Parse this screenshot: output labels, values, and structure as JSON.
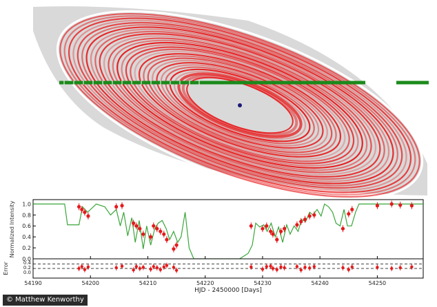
{
  "credit": "© Matthew Kenworthy",
  "colors": {
    "disk": "#d9d9d9",
    "ring_red": "#e8191b",
    "transit_line": "#1b8a1b",
    "star": "#1a1a7a",
    "model_line": "#3aa53a",
    "data_points": "#e41a1c"
  },
  "chart_data": [
    {
      "type": "diagram",
      "panel": "ring-model",
      "elements": [
        "grey disk",
        "red ring system",
        "green transit path",
        "central star"
      ],
      "ring_count": 30
    },
    {
      "type": "line",
      "panel": "light-curve",
      "xlabel": "",
      "ylabel": "Normalized Intensity",
      "xlim": [
        54190,
        54258
      ],
      "ylim": [
        0.0,
        1.08
      ],
      "yticks": [
        "0.0",
        "0.2",
        "0.4",
        "0.6",
        "0.8",
        "1.0"
      ],
      "grid": false,
      "series": [
        {
          "style": "line",
          "x": [
            54190,
            54195.5,
            54196,
            54198,
            54198.6,
            54199.5,
            54201,
            54202.5,
            54203.5,
            54204.5,
            54205.2,
            54205.8,
            54206.5,
            54207.2,
            54207.8,
            54208.5,
            54209.2,
            54209.8,
            54210.5,
            54211.2,
            54211.8,
            54212.5,
            54213.2,
            54213.8,
            54214.5,
            54215.2,
            54215.8,
            54216.5,
            54217.2,
            54218,
            54221,
            54224,
            54226,
            54227.5,
            54228.2,
            54228.8,
            54229.5,
            54230.2,
            54230.8,
            54231.5,
            54232.2,
            54232.8,
            54233.5,
            54234.2,
            54234.8,
            54235.5,
            54236.2,
            54236.8,
            54237.5,
            54238.2,
            54238.8,
            54239.5,
            54240.2,
            54240.8,
            54241.5,
            54242.2,
            54242.8,
            54243.5,
            54244.2,
            54244.8,
            54245.5,
            54246.2,
            54246.8,
            54247.5,
            54258
          ],
          "y": [
            1.0,
            1.0,
            0.62,
            0.62,
            0.95,
            0.85,
            1.0,
            0.95,
            0.8,
            0.9,
            0.6,
            0.85,
            0.42,
            0.75,
            0.3,
            0.7,
            0.18,
            0.6,
            0.25,
            0.55,
            0.65,
            0.7,
            0.55,
            0.35,
            0.5,
            0.3,
            0.4,
            0.85,
            0.2,
            0.0,
            0.0,
            0.0,
            0.0,
            0.1,
            0.25,
            0.65,
            0.58,
            0.62,
            0.5,
            0.65,
            0.4,
            0.58,
            0.3,
            0.62,
            0.45,
            0.6,
            0.5,
            0.72,
            0.68,
            0.85,
            0.8,
            0.9,
            0.78,
            1.0,
            0.95,
            0.85,
            0.65,
            0.6,
            0.9,
            0.6,
            0.6,
            0.85,
            1.0,
            1.0,
            1.0
          ]
        },
        {
          "style": "points",
          "x": [
            54198,
            54198.5,
            54199,
            54199.6,
            54204.5,
            54205.5,
            54207.5,
            54208,
            54208.6,
            54209.2,
            54210.5,
            54211,
            54211.6,
            54212.2,
            54212.8,
            54213.3,
            54214.5,
            54215,
            54228,
            54230,
            54230.7,
            54231.4,
            54231.8,
            54232.5,
            54233.2,
            54233.8,
            54236,
            54236.7,
            54237.4,
            54238.2,
            54239,
            54244,
            54245,
            54245.6,
            54250,
            54252.5,
            54254,
            54256
          ],
          "y": [
            0.95,
            0.9,
            0.85,
            0.78,
            0.95,
            0.97,
            0.65,
            0.6,
            0.55,
            0.45,
            0.4,
            0.6,
            0.55,
            0.5,
            0.45,
            0.35,
            0.18,
            0.25,
            0.6,
            0.55,
            0.6,
            0.5,
            0.45,
            0.35,
            0.5,
            0.55,
            0.62,
            0.68,
            0.72,
            0.78,
            0.8,
            0.55,
            0.82,
            0.9,
            0.97,
            1.0,
            0.98,
            0.97
          ]
        }
      ]
    },
    {
      "type": "scatter",
      "panel": "residuals",
      "xlabel": "HJD - 2450000 [Days]",
      "ylabel": "Error",
      "xlim": [
        54190,
        54258
      ],
      "xticks": [
        "54190",
        "54200",
        "54210",
        "54220",
        "54230",
        "54240",
        "54250"
      ],
      "yticks": [
        "0.4",
        "0.2",
        "0.0"
      ],
      "dashed_lines": [
        0.12,
        0.0
      ],
      "x": [
        54198,
        54198.5,
        54199,
        54199.6,
        54204.5,
        54205.5,
        54207.5,
        54208,
        54208.6,
        54209.2,
        54210.5,
        54211,
        54211.6,
        54212.2,
        54212.8,
        54213.3,
        54214.5,
        54215,
        54228,
        54230,
        54230.7,
        54231.4,
        54231.8,
        54232.5,
        54233.2,
        54233.8,
        54236,
        54236.7,
        54237.4,
        54238.2,
        54239,
        54244,
        54245,
        54245.6,
        54250,
        54252.5,
        54254,
        54256
      ],
      "y": [
        0.0,
        0.05,
        -0.03,
        0.04,
        0.02,
        0.06,
        -0.04,
        0.05,
        0.0,
        0.03,
        -0.02,
        0.05,
        0.02,
        -0.03,
        0.04,
        0.08,
        0.03,
        -0.05,
        0.04,
        -0.02,
        0.05,
        0.06,
        0.0,
        -0.03,
        0.04,
        0.02,
        0.05,
        -0.04,
        0.03,
        0.01,
        0.05,
        0.02,
        -0.03,
        0.04,
        0.03,
        0.0,
        0.02,
        0.04
      ]
    }
  ]
}
